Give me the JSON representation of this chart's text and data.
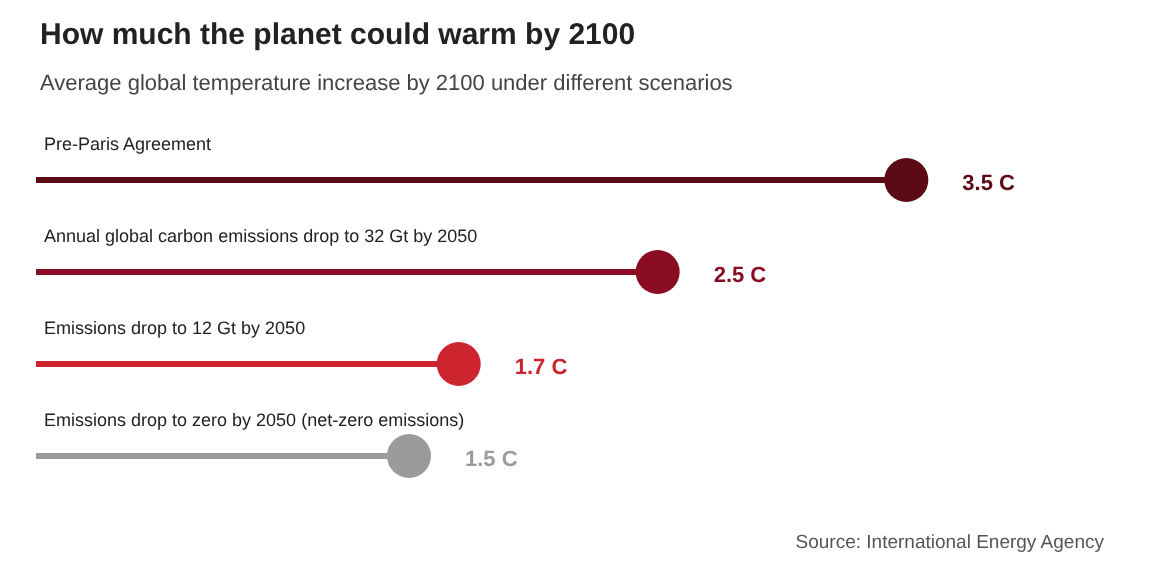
{
  "chart_data": {
    "type": "lollipop",
    "orientation": "horizontal",
    "title": "How much the planet could warm by 2100",
    "subtitle": "Average global temperature increase by 2100 under different scenarios",
    "categories": [
      "Pre-Paris Agreement",
      "Annual global carbon emissions drop to 32 Gt by 2050",
      "Emissions drop to 12 Gt by 2050",
      "Emissions drop to zero by 2050 (net-zero emissions)"
    ],
    "values": [
      3.5,
      2.5,
      1.7,
      1.5
    ],
    "colors": [
      "#5c0a16",
      "#8a0c22",
      "#cc2530",
      "#9b9b9b"
    ],
    "value_labels": [
      "3.5 C",
      "2.5 C",
      "1.7 C",
      "1.5 C"
    ],
    "tick_labels": false,
    "marker": "circle",
    "annotations": [
      "Source: International Energy Agency"
    ]
  }
}
